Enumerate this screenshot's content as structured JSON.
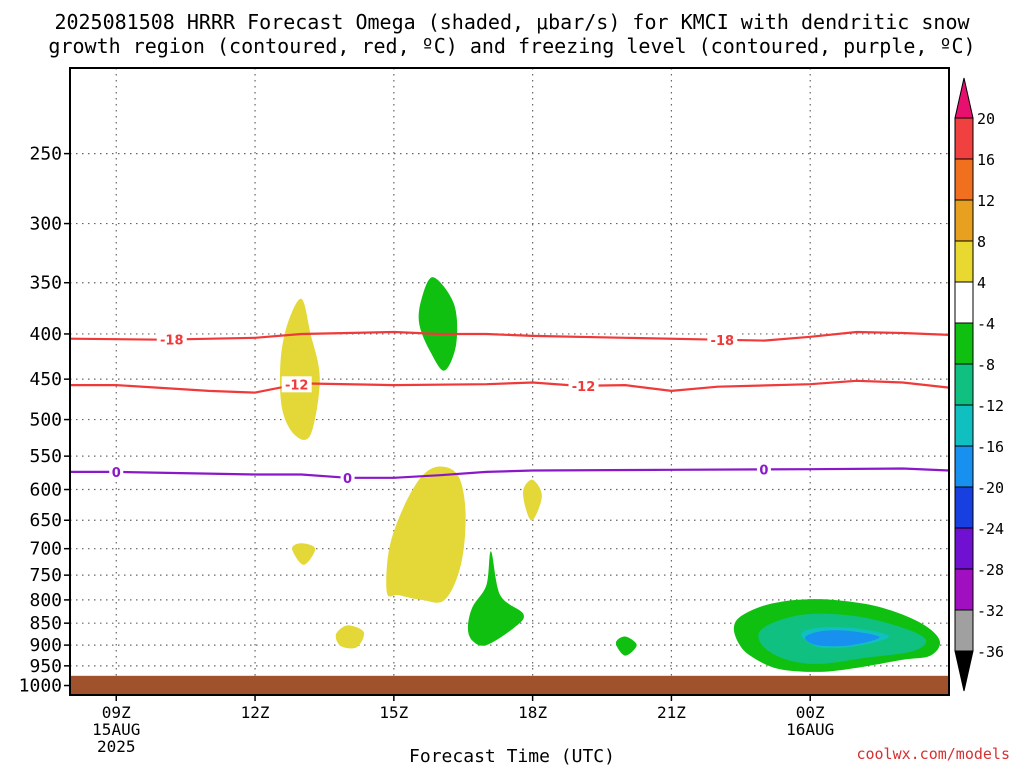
{
  "chart_data": {
    "type": "contour",
    "title_line1": "2025081508 HRRR Forecast Omega (shaded, μbar/s) for KMCI with dendritic snow",
    "title_line2": "growth region (contoured, red, ºC) and freezing level (contoured, purple, ºC)",
    "xlabel": "Forecast Time (UTC)",
    "credit": "coolwx.com/models",
    "x_range_hours": [
      8,
      27
    ],
    "y_range_hpa": [
      200,
      1025
    ],
    "y_scale": "log-pressure",
    "yticks": [
      250,
      300,
      350,
      400,
      450,
      500,
      550,
      600,
      650,
      700,
      750,
      800,
      850,
      900,
      950,
      1000
    ],
    "xticks": [
      {
        "hour": 9,
        "lines": [
          "09Z",
          "15AUG",
          "2025"
        ]
      },
      {
        "hour": 12,
        "lines": [
          "12Z"
        ]
      },
      {
        "hour": 15,
        "lines": [
          "15Z"
        ]
      },
      {
        "hour": 18,
        "lines": [
          "18Z"
        ]
      },
      {
        "hour": 21,
        "lines": [
          "21Z"
        ]
      },
      {
        "hour": 24,
        "lines": [
          "00Z",
          "16AUG"
        ]
      }
    ],
    "grid": true,
    "ground_color": "#a0522d",
    "ground_top_hpa": 975,
    "colorbar": {
      "labels": [
        "20",
        "16",
        "12",
        "8",
        "4",
        "-4",
        "-8",
        "-12",
        "-16",
        "-20",
        "-24",
        "-28",
        "-32",
        "-36"
      ],
      "colors": [
        "#e8106e",
        "#f04040",
        "#f07020",
        "#e8a020",
        "#e8d830",
        "#ffffff",
        "#10c010",
        "#10c080",
        "#10c0c0",
        "#1890f0",
        "#1840e0",
        "#7010d0",
        "#a010c0",
        "#a0a0a0",
        "#000000"
      ]
    },
    "contours": [
      {
        "label": "-18",
        "color": "#f03a3a",
        "points": [
          [
            8,
            405
          ],
          [
            10,
            406
          ],
          [
            12,
            404
          ],
          [
            13,
            400
          ],
          [
            14,
            399
          ],
          [
            15,
            398
          ],
          [
            16,
            400
          ],
          [
            17,
            400
          ],
          [
            18,
            402
          ],
          [
            20,
            404
          ],
          [
            22,
            406
          ],
          [
            23,
            407
          ],
          [
            24,
            403
          ],
          [
            25,
            398
          ],
          [
            26,
            399
          ],
          [
            27,
            401
          ]
        ],
        "label_hours": [
          10.2,
          22.1
        ]
      },
      {
        "label": "-12",
        "color": "#f03a3a",
        "points": [
          [
            8,
            457
          ],
          [
            9,
            457
          ],
          [
            11,
            464
          ],
          [
            12,
            466
          ],
          [
            13,
            455
          ],
          [
            15,
            457
          ],
          [
            17,
            456
          ],
          [
            18,
            454
          ],
          [
            19,
            458
          ],
          [
            20,
            457
          ],
          [
            21,
            464
          ],
          [
            22,
            459
          ],
          [
            24,
            456
          ],
          [
            25,
            452
          ],
          [
            26,
            454
          ],
          [
            27,
            460
          ]
        ],
        "label_hours": [
          12.9,
          19.1
        ]
      },
      {
        "label": "0",
        "color": "#8a18c8",
        "points": [
          [
            8,
            573
          ],
          [
            9,
            573
          ],
          [
            12,
            577
          ],
          [
            13,
            577
          ],
          [
            14,
            582
          ],
          [
            15,
            582
          ],
          [
            16,
            578
          ],
          [
            17,
            573
          ],
          [
            18,
            571
          ],
          [
            21,
            570
          ],
          [
            24,
            569
          ],
          [
            26,
            568
          ],
          [
            27,
            571
          ]
        ],
        "label_hours": [
          9.0,
          14.0,
          23.0
        ]
      }
    ],
    "blobs": [
      {
        "color": "#e3d838",
        "points": [
          [
            12.58,
            485
          ],
          [
            12.55,
            430
          ],
          [
            12.7,
            390
          ],
          [
            13.0,
            365
          ],
          [
            13.2,
            400
          ],
          [
            13.4,
            450
          ],
          [
            13.2,
            520
          ],
          [
            12.85,
            520
          ]
        ]
      },
      {
        "color": "#e3d838",
        "points": [
          [
            14.85,
            785
          ],
          [
            14.9,
            700
          ],
          [
            15.2,
            630
          ],
          [
            15.6,
            580
          ],
          [
            16.0,
            565
          ],
          [
            16.4,
            580
          ],
          [
            16.55,
            640
          ],
          [
            16.45,
            730
          ],
          [
            16.1,
            800
          ],
          [
            15.6,
            800
          ],
          [
            15.1,
            790
          ]
        ]
      },
      {
        "color": "#e3d838",
        "points": [
          [
            17.8,
            600
          ],
          [
            18.0,
            585
          ],
          [
            18.2,
            610
          ],
          [
            18.0,
            650
          ],
          [
            17.85,
            630
          ]
        ]
      },
      {
        "color": "#e3d838",
        "points": [
          [
            12.8,
            700
          ],
          [
            13.0,
            690
          ],
          [
            13.3,
            700
          ],
          [
            13.05,
            730
          ]
        ]
      },
      {
        "color": "#e3d838",
        "points": [
          [
            13.75,
            875
          ],
          [
            14.0,
            855
          ],
          [
            14.35,
            870
          ],
          [
            14.2,
            905
          ],
          [
            13.85,
            902
          ]
        ]
      },
      {
        "color": "#10c010",
        "points": [
          [
            15.55,
            390
          ],
          [
            15.6,
            365
          ],
          [
            15.85,
            345
          ],
          [
            16.3,
            370
          ],
          [
            16.35,
            410
          ],
          [
            16.1,
            440
          ],
          [
            15.8,
            420
          ]
        ]
      },
      {
        "color": "#10c010",
        "points": [
          [
            16.6,
            860
          ],
          [
            16.7,
            815
          ],
          [
            17.0,
            770
          ],
          [
            17.1,
            705
          ],
          [
            17.3,
            790
          ],
          [
            17.8,
            830
          ],
          [
            17.6,
            860
          ],
          [
            17.0,
            900
          ],
          [
            16.7,
            890
          ]
        ]
      },
      {
        "color": "#10c010",
        "points": [
          [
            19.8,
            895
          ],
          [
            20.0,
            880
          ],
          [
            20.25,
            900
          ],
          [
            20.0,
            925
          ]
        ]
      },
      {
        "color": "#10c010",
        "points": [
          [
            22.35,
            860
          ],
          [
            22.5,
            835
          ],
          [
            23.0,
            812
          ],
          [
            23.7,
            800
          ],
          [
            24.5,
            800
          ],
          [
            25.5,
            815
          ],
          [
            26.4,
            850
          ],
          [
            26.8,
            890
          ],
          [
            26.6,
            925
          ],
          [
            26.0,
            935
          ],
          [
            25.0,
            955
          ],
          [
            24.2,
            965
          ],
          [
            23.3,
            957
          ],
          [
            22.7,
            925
          ],
          [
            22.45,
            895
          ]
        ]
      },
      {
        "color": "#10c080",
        "points": [
          [
            22.9,
            870
          ],
          [
            23.3,
            845
          ],
          [
            24.0,
            830
          ],
          [
            25.0,
            835
          ],
          [
            26.0,
            860
          ],
          [
            26.5,
            888
          ],
          [
            26.2,
            915
          ],
          [
            25.2,
            930
          ],
          [
            24.2,
            945
          ],
          [
            23.5,
            935
          ],
          [
            23.0,
            905
          ]
        ]
      },
      {
        "color": "#10c0c0",
        "points": [
          [
            23.8,
            875
          ],
          [
            24.2,
            860
          ],
          [
            25.0,
            862
          ],
          [
            25.7,
            880
          ],
          [
            25.0,
            902
          ],
          [
            24.2,
            905
          ]
        ]
      },
      {
        "color": "#1890f0",
        "points": [
          [
            23.9,
            880
          ],
          [
            24.3,
            867
          ],
          [
            24.9,
            868
          ],
          [
            25.5,
            882
          ],
          [
            24.9,
            900
          ],
          [
            24.3,
            902
          ],
          [
            24.0,
            895
          ]
        ]
      }
    ]
  }
}
